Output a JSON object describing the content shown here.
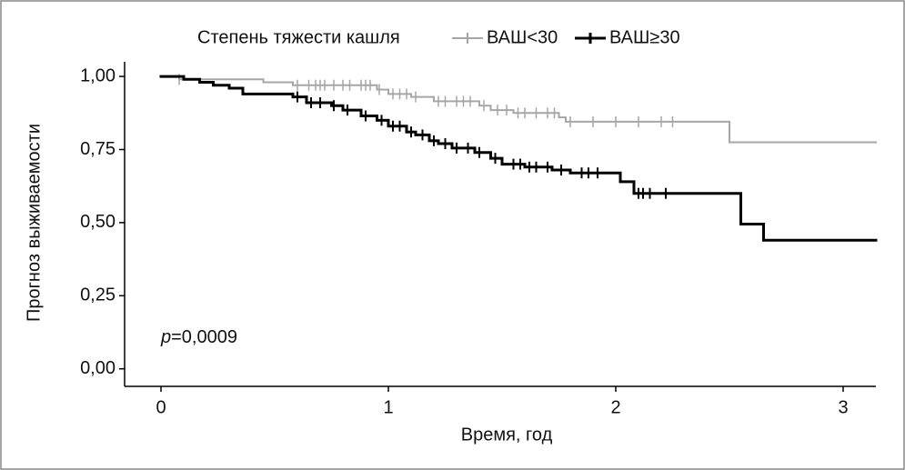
{
  "chart_data": {
    "type": "step",
    "legend_title": "Степень тяжести кашля",
    "x_label": "Время, год",
    "y_label": "Прогноз выживаемости",
    "annotation": {
      "symbol": "p",
      "text": "=0,0009"
    },
    "xlim": [
      -0.16,
      3.144
    ],
    "ylim": [
      -0.06,
      1.05
    ],
    "xticks": [
      0,
      1,
      2,
      3
    ],
    "yticks": [
      {
        "value": 0,
        "label": "0,00"
      },
      {
        "value": 0.25,
        "label": "0,25"
      },
      {
        "value": 0.5,
        "label": "0,50"
      },
      {
        "value": 0.75,
        "label": "0,75"
      },
      {
        "value": 1,
        "label": "1,00"
      }
    ],
    "series": [
      {
        "name": "ВАШ<30",
        "color": "#a6a6a6",
        "x": [
          0,
          0.08,
          0.45,
          0.58,
          0.95,
          1.0,
          1.1,
          1.2,
          1.4,
          1.45,
          1.55,
          1.75,
          1.78,
          2.5,
          3.144
        ],
        "values": [
          1.0,
          0.99,
          0.98,
          0.97,
          0.955,
          0.94,
          0.93,
          0.915,
          0.9,
          0.885,
          0.875,
          0.86,
          0.845,
          0.775,
          0.775
        ],
        "censored": [
          0.08,
          0.6,
          0.65,
          0.68,
          0.7,
          0.72,
          0.76,
          0.8,
          0.83,
          0.88,
          0.9,
          0.92,
          0.96,
          1.02,
          1.05,
          1.08,
          1.12,
          1.22,
          1.25,
          1.3,
          1.33,
          1.36,
          1.42,
          1.48,
          1.52,
          1.57,
          1.6,
          1.65,
          1.7,
          1.73,
          1.8,
          1.9,
          2.0,
          2.1,
          2.2,
          2.25
        ]
      },
      {
        "name": "ВАШ≥30",
        "color": "#000000",
        "x": [
          0,
          0.1,
          0.17,
          0.23,
          0.3,
          0.36,
          0.58,
          0.64,
          0.75,
          0.8,
          0.88,
          0.95,
          1.0,
          1.08,
          1.12,
          1.18,
          1.22,
          1.28,
          1.38,
          1.45,
          1.5,
          1.6,
          1.72,
          1.8,
          2.02,
          2.08,
          2.55,
          2.65,
          3.144
        ],
        "values": [
          1.0,
          0.99,
          0.98,
          0.97,
          0.96,
          0.94,
          0.93,
          0.91,
          0.9,
          0.885,
          0.865,
          0.85,
          0.83,
          0.81,
          0.8,
          0.78,
          0.77,
          0.755,
          0.74,
          0.72,
          0.7,
          0.69,
          0.68,
          0.67,
          0.64,
          0.6,
          0.495,
          0.44,
          0.44
        ],
        "censored": [
          0.6,
          0.66,
          0.7,
          0.76,
          0.82,
          0.9,
          0.97,
          1.02,
          1.05,
          1.1,
          1.15,
          1.2,
          1.25,
          1.3,
          1.35,
          1.4,
          1.47,
          1.55,
          1.58,
          1.62,
          1.65,
          1.7,
          1.76,
          1.85,
          1.88,
          1.92,
          2.1,
          2.12,
          2.15,
          2.22
        ]
      }
    ]
  }
}
